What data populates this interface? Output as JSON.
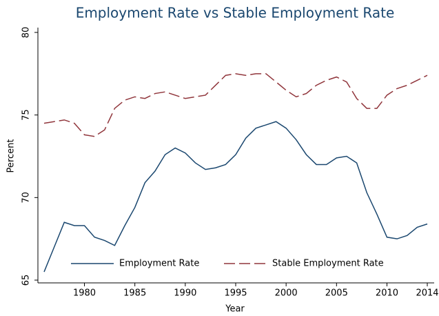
{
  "chart_data": {
    "type": "line",
    "title": "Employment Rate vs Stable Employment Rate",
    "x_label": "Year",
    "y_label": "Percent",
    "x": [
      1976,
      1977,
      1978,
      1979,
      1980,
      1981,
      1982,
      1983,
      1984,
      1985,
      1986,
      1987,
      1988,
      1989,
      1990,
      1991,
      1992,
      1993,
      1994,
      1995,
      1996,
      1997,
      1998,
      1999,
      2000,
      2001,
      2002,
      2003,
      2004,
      2005,
      2006,
      2007,
      2008,
      2009,
      2010,
      2011,
      2012,
      2013,
      2014
    ],
    "series": [
      {
        "name": "Employment Rate",
        "color": "#1a476f",
        "dash": "solid",
        "values": [
          65.5,
          67.0,
          68.5,
          68.3,
          68.3,
          67.6,
          67.4,
          67.1,
          68.3,
          69.4,
          70.9,
          71.6,
          72.6,
          73.0,
          72.7,
          72.1,
          71.7,
          71.8,
          72.0,
          72.6,
          73.6,
          74.2,
          74.4,
          74.6,
          74.2,
          73.5,
          72.6,
          72.0,
          72.0,
          72.4,
          72.5,
          72.1,
          70.3,
          69.0,
          67.6,
          67.5,
          67.7,
          68.2,
          68.4
        ]
      },
      {
        "name": "Stable Employment Rate",
        "color": "#90353b",
        "dash": "dashed",
        "values": [
          74.5,
          74.6,
          74.7,
          74.5,
          73.8,
          73.7,
          74.1,
          75.4,
          75.9,
          76.1,
          76.0,
          76.3,
          76.4,
          76.2,
          76.0,
          76.1,
          76.2,
          76.8,
          77.4,
          77.5,
          77.4,
          77.5,
          77.5,
          77.0,
          76.5,
          76.1,
          76.3,
          76.8,
          77.1,
          77.3,
          77.0,
          76.0,
          75.4,
          75.4,
          76.2,
          76.6,
          76.8,
          77.1,
          77.4
        ]
      }
    ],
    "xlim": [
      1976,
      2014
    ],
    "xticks": [
      1980,
      1985,
      1990,
      1995,
      2000,
      2005,
      2010,
      2014
    ],
    "ylim": [
      65,
      80
    ],
    "yticks": [
      65,
      70,
      75,
      80
    ],
    "grid": false,
    "legend": "bottom"
  }
}
